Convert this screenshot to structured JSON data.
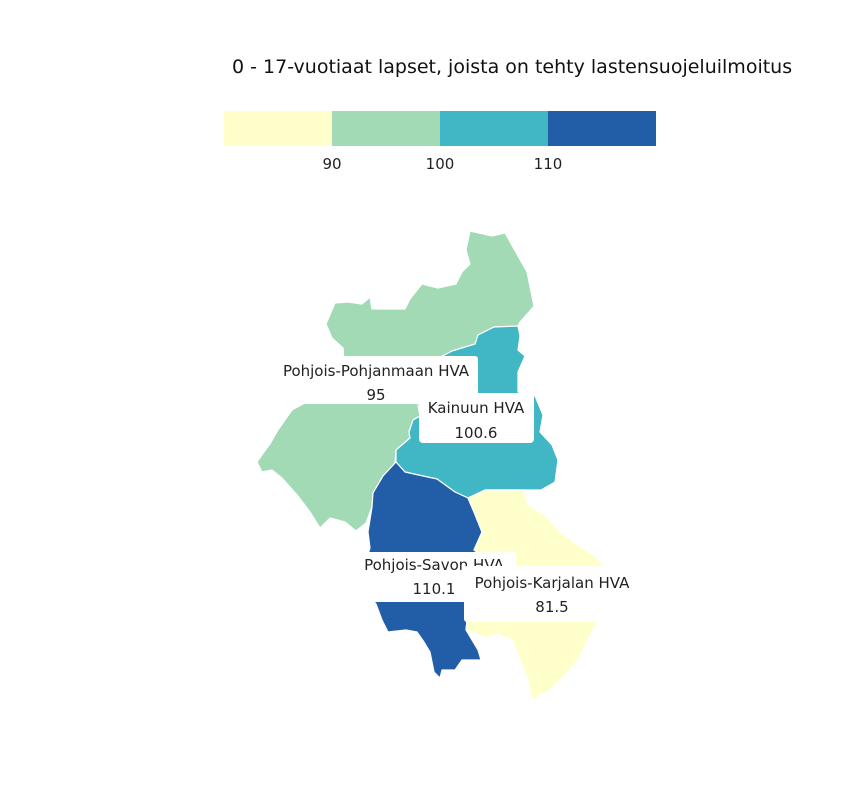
{
  "title": "0 - 17-vuotiaat lapset, joista on tehty lastensuojeluilmoitus",
  "legend": {
    "colors": [
      "#ffffcc",
      "#a1dab4",
      "#41b6c4",
      "#225ea8"
    ],
    "ticks": [
      "90",
      "100",
      "110"
    ]
  },
  "regions": [
    {
      "name": "Pohjois-Pohjanmaan HVA",
      "value": "95",
      "color": "#a1dab4"
    },
    {
      "name": "Kainuun HVA",
      "value": "100.6",
      "color": "#41b6c4"
    },
    {
      "name": "Pohjois-Savon HVA",
      "value": "110.1",
      "color": "#225ea8"
    },
    {
      "name": "Pohjois-Karjalan HVA",
      "value": "81.5",
      "color": "#ffffcc"
    }
  ]
}
